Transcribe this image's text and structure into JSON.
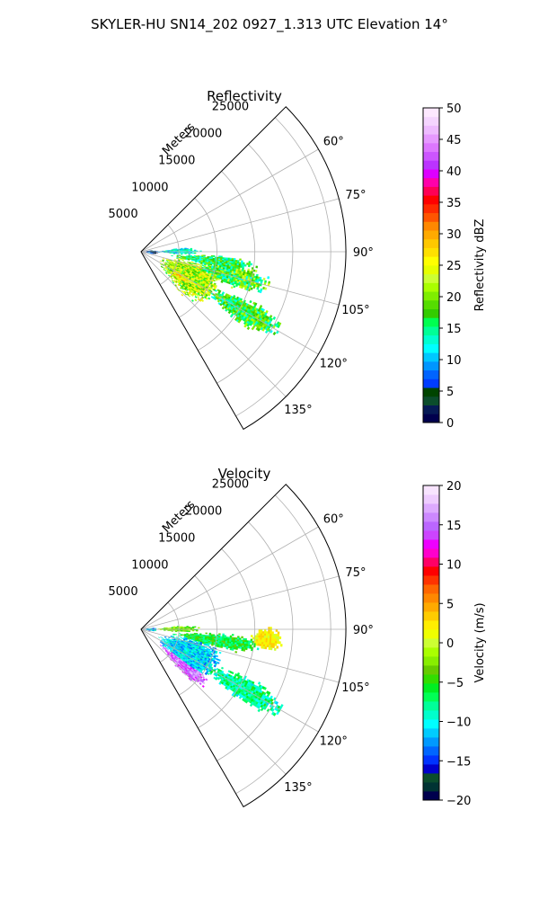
{
  "figure": {
    "title": "SKYLER-HU  SN14_202  0927_1.313 UTC Elevation 14°"
  },
  "chart_data": [
    {
      "type": "heatmap",
      "subtype": "polar-sector",
      "title": "Reflectivity",
      "range_label": "Meters",
      "range_ticks": [
        5000,
        10000,
        15000,
        20000,
        25000
      ],
      "range_tick_labels": [
        "5000",
        "10000",
        "15000",
        "20000",
        "25000"
      ],
      "range_max": 27000,
      "azimuth_range": [
        45,
        150
      ],
      "azimuth_ticks": [
        60,
        75,
        90,
        105,
        120,
        135
      ],
      "azimuth_tick_labels": [
        "60°",
        "75°",
        "90°",
        "105°",
        "120°",
        "135°"
      ],
      "grid": true,
      "colorbar": {
        "label": "Reflectivity dBZ",
        "range": [
          0,
          50
        ],
        "ticks": [
          0,
          5,
          10,
          15,
          20,
          25,
          30,
          35,
          40,
          45,
          50
        ],
        "tick_labels": [
          "0",
          "5",
          "10",
          "15",
          "20",
          "25",
          "30",
          "35",
          "40",
          "45",
          "50"
        ],
        "placement": "right"
      },
      "blobs": [
        {
          "az": [
            95,
            138
          ],
          "r": [
            2000,
            12000
          ],
          "value": 22,
          "spread": 6
        },
        {
          "az": [
            108,
            132
          ],
          "r": [
            3000,
            10000
          ],
          "value": 26,
          "spread": 5
        },
        {
          "az": [
            96,
            112
          ],
          "r": [
            6000,
            18000
          ],
          "value": 18,
          "spread": 6
        },
        {
          "az": [
            92,
            102
          ],
          "r": [
            3000,
            16000
          ],
          "value": 16,
          "spread": 5
        },
        {
          "az": [
            113,
            126
          ],
          "r": [
            9000,
            22000
          ],
          "value": 17,
          "spread": 5
        },
        {
          "az": [
            84,
            94
          ],
          "r": [
            1500,
            8000
          ],
          "value": 12,
          "spread": 4
        },
        {
          "az": [
            82,
            100
          ],
          "r": [
            200,
            2200
          ],
          "value": 5,
          "spread": 5
        }
      ]
    },
    {
      "type": "heatmap",
      "subtype": "polar-sector",
      "title": "Velocity",
      "range_label": "Meters",
      "range_ticks": [
        5000,
        10000,
        15000,
        20000,
        25000
      ],
      "range_tick_labels": [
        "5000",
        "10000",
        "15000",
        "20000",
        "25000"
      ],
      "range_max": 27000,
      "azimuth_range": [
        45,
        150
      ],
      "azimuth_ticks": [
        60,
        75,
        90,
        105,
        120,
        135
      ],
      "azimuth_tick_labels": [
        "60°",
        "75°",
        "90°",
        "105°",
        "120°",
        "135°"
      ],
      "grid": true,
      "colorbar": {
        "label": "Velocity (m/s)",
        "range": [
          -20,
          20
        ],
        "ticks": [
          -20,
          -15,
          -10,
          -5,
          0,
          5,
          10,
          15,
          20
        ],
        "tick_labels": [
          "−20",
          "−15",
          "−10",
          "−5",
          "0",
          "5",
          "10",
          "15",
          "20"
        ],
        "placement": "right"
      },
      "blobs": [
        {
          "az": [
            95,
            138
          ],
          "r": [
            2000,
            12000
          ],
          "value": -11,
          "spread": 3
        },
        {
          "az": [
            122,
            137
          ],
          "r": [
            2500,
            12000
          ],
          "value": 15,
          "spread": 3
        },
        {
          "az": [
            92,
            104
          ],
          "r": [
            3000,
            17000
          ],
          "value": -6,
          "spread": 3
        },
        {
          "az": [
            113,
            126
          ],
          "r": [
            9000,
            22000
          ],
          "value": -8,
          "spread": 3
        },
        {
          "az": [
            88,
            100
          ],
          "r": [
            14000,
            19000
          ],
          "value": 2,
          "spread": 2
        },
        {
          "az": [
            84,
            94
          ],
          "r": [
            1500,
            8000
          ],
          "value": -3,
          "spread": 3
        },
        {
          "az": [
            82,
            100
          ],
          "r": [
            200,
            2200
          ],
          "value": -12,
          "spread": 4
        }
      ]
    }
  ]
}
